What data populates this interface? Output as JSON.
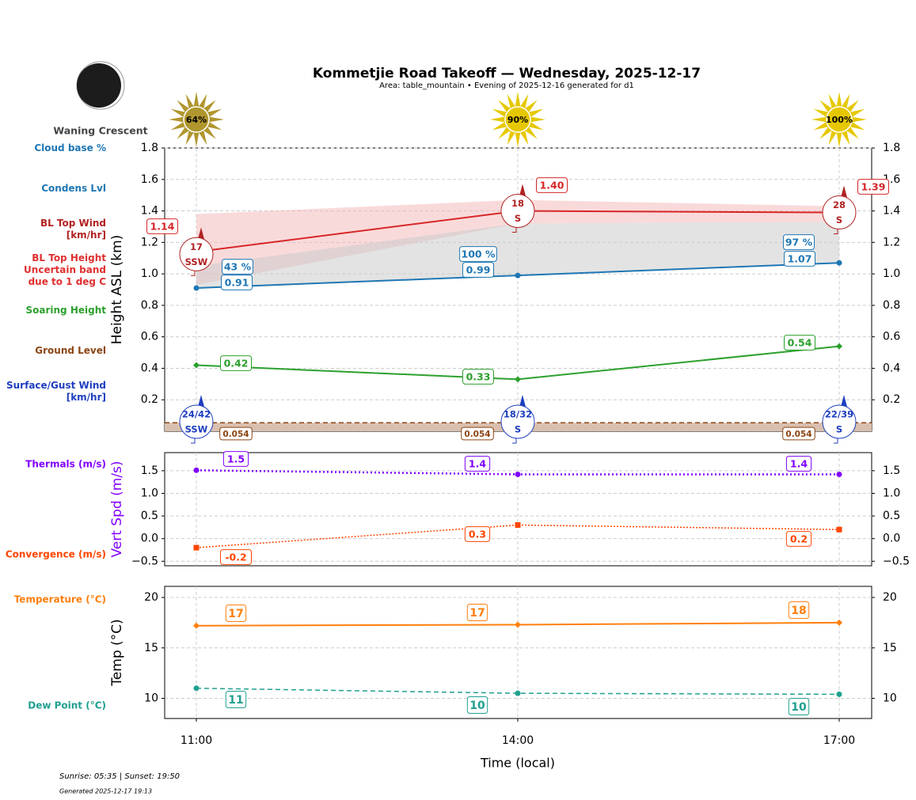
{
  "title": "Kommetjie Road Takeoff — Wednesday, 2025-12-17",
  "subtitle": "Area: table_mountain • Evening of 2025-12-16 generated for d1",
  "moon_phase": "Waning Crescent",
  "sunrise_sunset": "Sunrise: 05:35 | Sunset: 19:50",
  "generated": "Generated 2025-12-17 19:13",
  "xlabel": "Time (local)",
  "colors": {
    "cloud": "#1f77b4",
    "bl": "#d62728",
    "soar": "#2ca02c",
    "ground": "#8b4513",
    "wind": "#1f3fbf",
    "thermal": "#8000ff",
    "conv": "#ff4500",
    "temp": "#ff7f0e",
    "dew": "#20a090"
  },
  "sun_icons": [
    {
      "label": "64%",
      "color": "#b0962e"
    },
    {
      "label": "90%",
      "color": "#e6c800"
    },
    {
      "label": "100%",
      "color": "#e6c800"
    }
  ],
  "chart_data": [
    {
      "type": "line",
      "ylabel": "Height ASL (km)",
      "ylim": [
        0,
        1.8
      ],
      "yticks": [
        "0.2",
        "0.4",
        "0.6",
        "0.8",
        "1.0",
        "1.2",
        "1.4",
        "1.6",
        "1.8"
      ],
      "x": [
        "11:00",
        "14:00",
        "17:00"
      ],
      "grid": true,
      "row_labels": [
        "Cloud base %",
        "Condens Lvl",
        "BL Top Wind [km/hr]",
        "BL Top Height Uncertain band due to 1 deg C",
        "Soaring Height",
        "Ground Level",
        "Surface/Gust Wind [km/hr]"
      ],
      "cloud_base_pct": [
        "43 %",
        "100 %",
        "97 %"
      ],
      "condens_lvl": [
        0.91,
        0.99,
        1.07
      ],
      "bl_top": [
        1.14,
        1.4,
        1.39
      ],
      "bl_band_upper": [
        1.38,
        1.47,
        1.43
      ],
      "bl_band_lower": [
        0.93,
        1.32,
        1.33
      ],
      "soaring": [
        0.42,
        0.33,
        0.54
      ],
      "ground": [
        0.054,
        0.054,
        0.054
      ],
      "bl_wind": [
        {
          "speed": "17",
          "dir": "SSW"
        },
        {
          "speed": "18",
          "dir": "S"
        },
        {
          "speed": "28",
          "dir": "S"
        }
      ],
      "surface_wind": [
        {
          "speed": "24/42",
          "dir": "SSW"
        },
        {
          "speed": "18/32",
          "dir": "S"
        },
        {
          "speed": "22/39",
          "dir": "S"
        }
      ]
    },
    {
      "type": "line",
      "ylabel": "Vert Spd (m/s)",
      "ylim": [
        -0.6,
        1.9
      ],
      "yticks": [
        "−0.5",
        "0.0",
        "0.5",
        "1.0",
        "1.5"
      ],
      "x": [
        "11:00",
        "14:00",
        "17:00"
      ],
      "grid": true,
      "series": [
        {
          "name": "Thermals (m/s)",
          "values": [
            1.5,
            1.4,
            1.4
          ]
        },
        {
          "name": "Convergence (m/s)",
          "values": [
            -0.2,
            0.3,
            0.2
          ]
        }
      ]
    },
    {
      "type": "line",
      "ylabel": "Temp (°C)",
      "ylim": [
        8,
        21.1
      ],
      "yticks": [
        "10",
        "15",
        "20"
      ],
      "x": [
        "11:00",
        "14:00",
        "17:00"
      ],
      "grid": true,
      "series": [
        {
          "name": "Temperature (°C)",
          "values": [
            17.2,
            17.3,
            17.5
          ],
          "labels": [
            "17",
            "17",
            "18"
          ]
        },
        {
          "name": "Dew Point (°C)",
          "values": [
            11.0,
            10.5,
            10.4
          ],
          "labels": [
            "11",
            "10",
            "10"
          ]
        }
      ]
    }
  ]
}
